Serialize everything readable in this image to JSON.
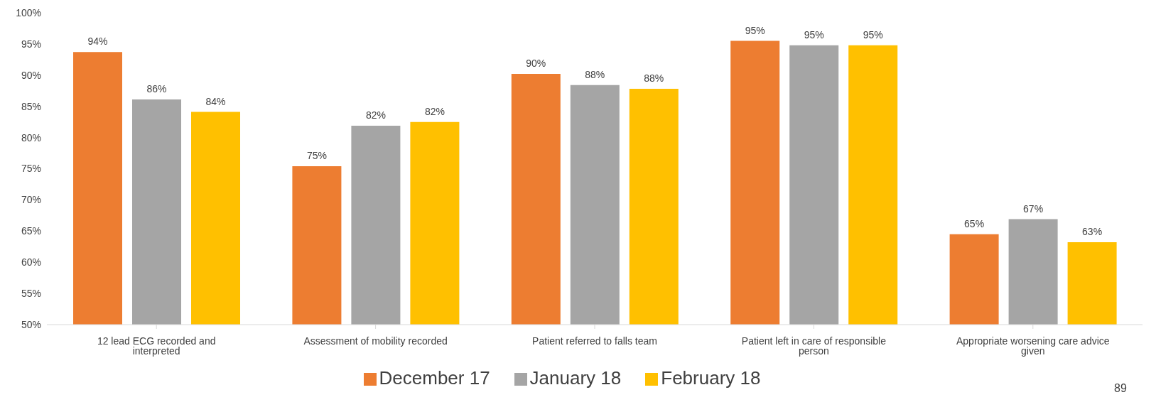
{
  "chart_data": {
    "type": "bar",
    "categories": [
      "12 lead ECG recorded and interpreted",
      "Assessment of mobility recorded",
      "Patient referred to falls team",
      "Patient left in care of responsible person",
      "Appropriate worsening care advice given"
    ],
    "series": [
      {
        "name": "December 17",
        "color": "#ed7d31",
        "values": [
          93.7,
          75.4,
          90.2,
          95.5,
          64.5
        ],
        "value_labels": [
          "94%",
          "75%",
          "90%",
          "95%",
          "65%"
        ]
      },
      {
        "name": "January 18",
        "color": "#a5a5a5",
        "values": [
          86.1,
          81.9,
          88.4,
          94.8,
          66.9
        ],
        "value_labels": [
          "86%",
          "82%",
          "88%",
          "95%",
          "67%"
        ]
      },
      {
        "name": "February 18",
        "color": "#ffc000",
        "values": [
          84.1,
          82.5,
          87.8,
          94.8,
          63.2
        ],
        "value_labels": [
          "84%",
          "82%",
          "88%",
          "95%",
          "63%"
        ]
      }
    ],
    "ylim": [
      50,
      100
    ],
    "yticks": [
      {
        "value": 50,
        "label": "50%"
      },
      {
        "value": 55,
        "label": "55%"
      },
      {
        "value": 60,
        "label": "60%"
      },
      {
        "value": 65,
        "label": "65%"
      },
      {
        "value": 70,
        "label": "70%"
      },
      {
        "value": 75,
        "label": "75%"
      },
      {
        "value": 80,
        "label": "80%"
      },
      {
        "value": 85,
        "label": "85%"
      },
      {
        "value": 90,
        "label": "90%"
      },
      {
        "value": 95,
        "label": "95%"
      },
      {
        "value": 100,
        "label": "100%"
      }
    ],
    "grid": false,
    "legend": "bottom",
    "annotations": [
      "89"
    ]
  }
}
